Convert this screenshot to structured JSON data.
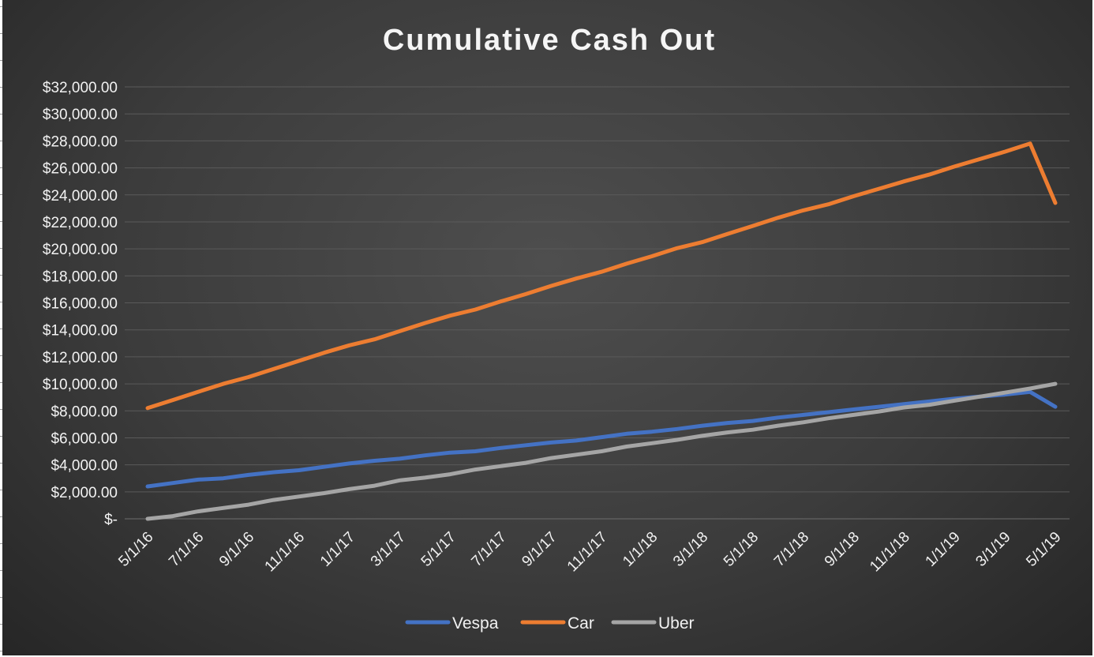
{
  "chart_data": {
    "type": "line",
    "title": "Cumulative Cash Out",
    "xlabel": "",
    "ylabel": "",
    "ylim": [
      0,
      32000
    ],
    "y_ticks": [
      0,
      2000,
      4000,
      6000,
      8000,
      10000,
      12000,
      14000,
      16000,
      18000,
      20000,
      22000,
      24000,
      26000,
      28000,
      30000,
      32000
    ],
    "y_tick_labels": [
      "$-",
      "$2,000.00",
      "$4,000.00",
      "$6,000.00",
      "$8,000.00",
      "$10,000.00",
      "$12,000.00",
      "$14,000.00",
      "$16,000.00",
      "$18,000.00",
      "$20,000.00",
      "$22,000.00",
      "$24,000.00",
      "$26,000.00",
      "$28,000.00",
      "$30,000.00",
      "$32,000.00"
    ],
    "x": [
      "5/1/16",
      "6/1/16",
      "7/1/16",
      "8/1/16",
      "9/1/16",
      "10/1/16",
      "11/1/16",
      "12/1/16",
      "1/1/17",
      "2/1/17",
      "3/1/17",
      "4/1/17",
      "5/1/17",
      "6/1/17",
      "7/1/17",
      "8/1/17",
      "9/1/17",
      "10/1/17",
      "11/1/17",
      "12/1/17",
      "1/1/18",
      "2/1/18",
      "3/1/18",
      "4/1/18",
      "5/1/18",
      "6/1/18",
      "7/1/18",
      "8/1/18",
      "9/1/18",
      "10/1/18",
      "11/1/18",
      "12/1/18",
      "1/1/19",
      "2/1/19",
      "3/1/19",
      "4/1/19",
      "5/1/19"
    ],
    "x_tick_labels": [
      "5/1/16",
      "7/1/16",
      "9/1/16",
      "11/1/16",
      "1/1/17",
      "3/1/17",
      "5/1/17",
      "7/1/17",
      "9/1/17",
      "11/1/17",
      "1/1/18",
      "3/1/18",
      "5/1/18",
      "7/1/18",
      "9/1/18",
      "11/1/18",
      "1/1/19",
      "3/1/19",
      "5/1/19"
    ],
    "grid": true,
    "legend": "bottom",
    "series": [
      {
        "name": "Vespa",
        "color": "#4472c4",
        "values": [
          2400,
          2650,
          2900,
          3000,
          3250,
          3450,
          3600,
          3850,
          4100,
          4300,
          4450,
          4700,
          4900,
          5000,
          5250,
          5450,
          5650,
          5800,
          6050,
          6300,
          6450,
          6650,
          6900,
          7100,
          7250,
          7500,
          7700,
          7900,
          8100,
          8300,
          8500,
          8700,
          8900,
          9050,
          9200,
          9400,
          8300
        ]
      },
      {
        "name": "Car",
        "color": "#ed7d31",
        "values": [
          8200,
          8800,
          9400,
          10000,
          10500,
          11100,
          11700,
          12300,
          12850,
          13300,
          13900,
          14500,
          15050,
          15500,
          16100,
          16650,
          17250,
          17800,
          18300,
          18900,
          19450,
          20050,
          20500,
          21100,
          21700,
          22300,
          22850,
          23300,
          23900,
          24450,
          25000,
          25500,
          26100,
          26650,
          27200,
          27800,
          23400
        ]
      },
      {
        "name": "Uber",
        "color": "#a5a5a5",
        "values": [
          0,
          200,
          550,
          800,
          1050,
          1400,
          1650,
          1900,
          2200,
          2450,
          2850,
          3050,
          3300,
          3650,
          3900,
          4150,
          4500,
          4750,
          5000,
          5350,
          5600,
          5850,
          6150,
          6400,
          6600,
          6900,
          7150,
          7450,
          7700,
          7950,
          8250,
          8450,
          8750,
          9050,
          9350,
          9650,
          10000
        ]
      }
    ]
  }
}
